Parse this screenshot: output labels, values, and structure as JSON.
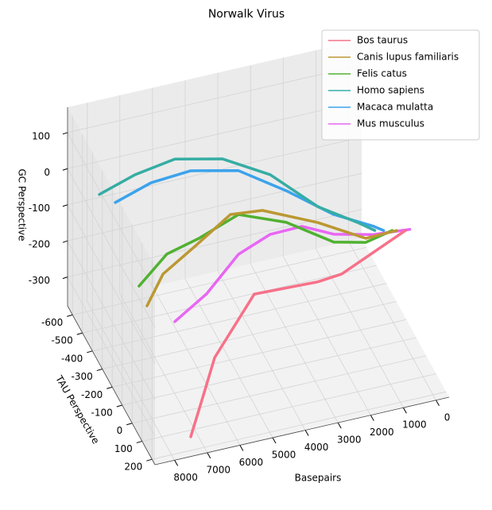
{
  "chart_data": {
    "type": "line3d",
    "title": "Norwalk Virus",
    "xlabel": "Basepairs",
    "ylabel": "TAU Perspective",
    "zlabel": "GC Perspective",
    "xlim": [
      -400,
      8600
    ],
    "ylim": [
      -650,
      230
    ],
    "zlim": [
      -380,
      170
    ],
    "xticks": [
      0,
      1000,
      2000,
      3000,
      4000,
      5000,
      6000,
      7000,
      8000
    ],
    "yticks": [
      -600,
      -500,
      -400,
      -300,
      -200,
      -100,
      0,
      100,
      200
    ],
    "zticks": [
      -300,
      -200,
      -100,
      0,
      100
    ],
    "grid": true,
    "legend": "upper right",
    "series": [
      {
        "name": "Bos taurus",
        "color": "#f77189",
        "x": [
          7400,
          7030,
          6640,
          5160,
          2950,
          1950,
          0
        ],
        "y": [
          195,
          195,
          186,
          98,
          10,
          -78,
          -78
        ],
        "z": [
          -345,
          -243,
          -146,
          -45,
          -101,
          -144,
          -64
        ]
      },
      {
        "name": "Canis lupus familiaris",
        "color": "#bb9832",
        "x": [
          7640,
          7150,
          6180,
          5085,
          4110,
          2410,
          950,
          0
        ],
        "y": [
          -166,
          -166,
          -166,
          -166,
          -166,
          -166,
          -166,
          -166
        ],
        "z": [
          -158,
          -80,
          -24,
          42,
          33,
          -36,
          -110,
          -108
        ]
      },
      {
        "name": "Felis catus",
        "color": "#50b131",
        "x": [
          7750,
          6900,
          5925,
          4710,
          3245,
          1790,
          815,
          0
        ],
        "y": [
          -210,
          -210,
          -210,
          -210,
          -210,
          -210,
          -210,
          -210
        ],
        "z": [
          -123,
          -52,
          -29,
          12,
          -40,
          -125,
          -146,
          -130
        ]
      },
      {
        "name": "Homo sapiens",
        "color": "#36ada4",
        "x": [
          8430,
          7335,
          6120,
          4660,
          3200,
          1740,
          525,
          0
        ],
        "y": [
          -386,
          -386,
          -386,
          -386,
          -386,
          -386,
          -386,
          -386
        ],
        "z": [
          57,
          89,
          107,
          77,
          3,
          -116,
          -185,
          -218
        ]
      },
      {
        "name": "Macaca mulatta",
        "color": "#3ba3ec",
        "x": [
          8210,
          7115,
          5900,
          4440,
          2980,
          1525,
          305,
          0
        ],
        "y": [
          -298,
          -298,
          -298,
          -298,
          -298,
          -298,
          -298,
          -298
        ],
        "z": [
          74,
          106,
          114,
          84,
          -2,
          -98,
          -156,
          -174
        ]
      },
      {
        "name": "Mus musculus",
        "color": "#e866f4",
        "x": [
          7190,
          6215,
          5243,
          4271,
          3299,
          2327,
          1112,
          0
        ],
        "y": [
          -34,
          -34,
          -34,
          -34,
          -34,
          -34,
          -34,
          -34
        ],
        "z": [
          -145,
          -88,
          1,
          36,
          38,
          -4,
          -30,
          -39
        ]
      }
    ]
  }
}
